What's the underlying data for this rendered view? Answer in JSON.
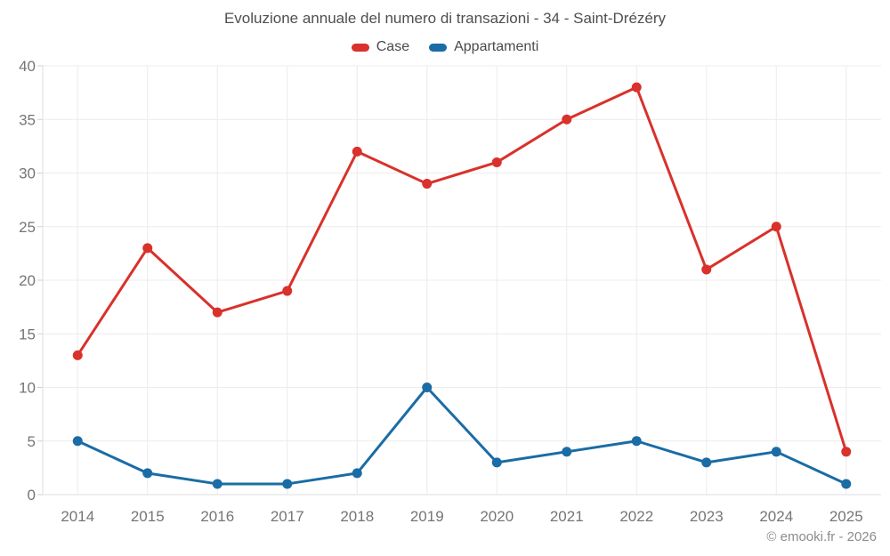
{
  "chart_data": {
    "type": "line",
    "title": "Evoluzione annuale del numero di transazioni - 34 - Saint-Drézéry",
    "categories": [
      "2014",
      "2015",
      "2016",
      "2017",
      "2018",
      "2019",
      "2020",
      "2021",
      "2022",
      "2023",
      "2024",
      "2025"
    ],
    "series": [
      {
        "name": "Case",
        "color": "#d9312b",
        "values": [
          13,
          23,
          17,
          19,
          32,
          29,
          31,
          35,
          38,
          21,
          25,
          4
        ]
      },
      {
        "name": "Appartamenti",
        "color": "#1a6ca5",
        "values": [
          5,
          2,
          1,
          1,
          2,
          10,
          3,
          4,
          5,
          3,
          4,
          1
        ]
      }
    ],
    "xlabel": "",
    "ylabel": "",
    "ylim": [
      0,
      40
    ],
    "y_ticks": [
      0,
      5,
      10,
      15,
      20,
      25,
      30,
      35,
      40
    ],
    "grid": "on",
    "legend_position": "top"
  },
  "footer": {
    "credit": "© emooki.fr - 2026"
  }
}
